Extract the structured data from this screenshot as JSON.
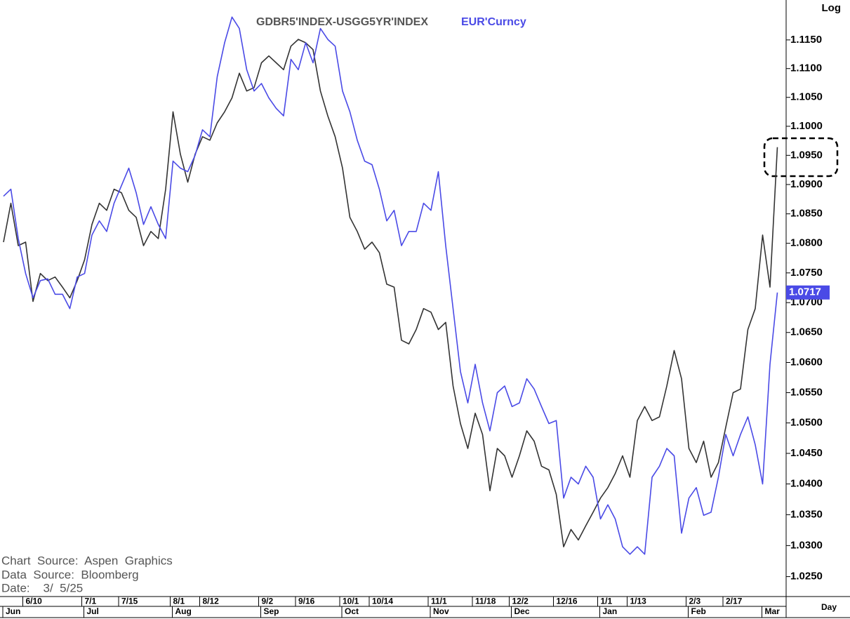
{
  "chart_data": {
    "type": "line",
    "legend": [
      "GDBR5'INDEX-USGG5YR'INDEX",
      "EUR'Curncy"
    ],
    "scale_label": "Log",
    "period_label": "Day",
    "source_lines": [
      "Chart  Source:  Aspen  Graphics",
      "Data  Source:  Bloomberg",
      "Date:    3/  5/25"
    ],
    "yscale": "log",
    "ylim": [
      1.0218,
      1.122
    ],
    "yticks": [
      {
        "value": 1.025,
        "label": "1.0250"
      },
      {
        "value": 1.03,
        "label": "1.0300"
      },
      {
        "value": 1.035,
        "label": "1.0350"
      },
      {
        "value": 1.04,
        "label": "1.0400"
      },
      {
        "value": 1.045,
        "label": "1.0450"
      },
      {
        "value": 1.05,
        "label": "1.0500"
      },
      {
        "value": 1.055,
        "label": "1.0550"
      },
      {
        "value": 1.06,
        "label": "1.0600"
      },
      {
        "value": 1.065,
        "label": "1.0650"
      },
      {
        "value": 1.07,
        "label": "1.0700"
      },
      {
        "value": 1.075,
        "label": "1.0750"
      },
      {
        "value": 1.08,
        "label": "1.0800"
      },
      {
        "value": 1.085,
        "label": "1.0850"
      },
      {
        "value": 1.09,
        "label": "1.0900"
      },
      {
        "value": 1.095,
        "label": "1.0950"
      },
      {
        "value": 1.1,
        "label": "1.1000"
      },
      {
        "value": 1.105,
        "label": "1.1050"
      },
      {
        "value": 1.11,
        "label": "1.1100"
      },
      {
        "value": 1.115,
        "label": "1.1150"
      }
    ],
    "categories": [
      null,
      null,
      null,
      "6/10",
      null,
      null,
      null,
      null,
      null,
      null,
      null,
      "7/1",
      null,
      null,
      null,
      null,
      "7/15",
      null,
      null,
      null,
      null,
      null,
      null,
      "8/1",
      null,
      null,
      null,
      "8/12",
      null,
      null,
      null,
      null,
      null,
      null,
      null,
      "9/2",
      null,
      null,
      null,
      null,
      "9/16",
      null,
      null,
      null,
      null,
      null,
      "10/1",
      null,
      null,
      null,
      "10/14",
      null,
      null,
      null,
      null,
      null,
      null,
      null,
      "11/1",
      null,
      null,
      null,
      null,
      null,
      "11/18",
      null,
      null,
      null,
      null,
      "12/2",
      null,
      null,
      null,
      null,
      null,
      "12/16",
      null,
      null,
      null,
      null,
      null,
      "1/1",
      null,
      null,
      null,
      "1/13",
      null,
      null,
      null,
      null,
      null,
      null,
      null,
      "2/3",
      null,
      null,
      null,
      null,
      "2/17",
      null,
      null,
      null,
      null,
      null,
      null,
      null
    ],
    "months": [
      "Jun",
      null,
      null,
      null,
      null,
      null,
      null,
      null,
      null,
      null,
      null,
      "Jul",
      null,
      null,
      null,
      null,
      null,
      null,
      null,
      null,
      null,
      null,
      null,
      "Aug",
      null,
      null,
      null,
      null,
      null,
      null,
      null,
      null,
      null,
      null,
      null,
      "Sep",
      null,
      null,
      null,
      null,
      null,
      null,
      null,
      null,
      null,
      null,
      "Oct",
      null,
      null,
      null,
      null,
      null,
      null,
      null,
      null,
      null,
      null,
      null,
      "Nov",
      null,
      null,
      null,
      null,
      null,
      null,
      null,
      null,
      null,
      null,
      "Dec",
      null,
      null,
      null,
      null,
      null,
      null,
      null,
      null,
      null,
      null,
      null,
      "Jan",
      null,
      null,
      null,
      null,
      null,
      null,
      null,
      null,
      null,
      null,
      null,
      "Feb",
      null,
      null,
      null,
      null,
      null,
      null,
      null,
      null,
      null,
      "Mar",
      null,
      null
    ],
    "series": [
      {
        "name": "GDBR5'INDEX-USGG5YR'INDEX",
        "color": "#333333",
        "values": [
          1.0802,
          1.0868,
          1.0796,
          1.0802,
          1.0702,
          1.0749,
          1.0737,
          1.0743,
          1.0726,
          1.0708,
          1.0737,
          1.0772,
          1.0832,
          1.0868,
          1.0856,
          1.0892,
          1.0886,
          1.0856,
          1.0844,
          1.0796,
          1.082,
          1.0808,
          1.0892,
          1.1025,
          1.0952,
          1.0904,
          1.0952,
          1.0982,
          1.0976,
          1.1006,
          1.1025,
          1.1049,
          1.1092,
          1.1061,
          1.1067,
          1.111,
          1.1122,
          1.111,
          1.1098,
          1.1139,
          1.1151,
          1.1145,
          1.1133,
          1.1061,
          1.1018,
          1.0982,
          1.0928,
          1.0844,
          1.082,
          1.079,
          1.0802,
          1.0784,
          1.0731,
          1.0726,
          1.0637,
          1.0631,
          1.0655,
          1.069,
          1.0684,
          1.0655,
          1.0667,
          1.0561,
          1.0499,
          1.0458,
          1.0516,
          1.0481,
          1.0389,
          1.0458,
          1.0446,
          1.0411,
          1.0446,
          1.0487,
          1.047,
          1.0429,
          1.0423,
          1.0383,
          1.0298,
          1.0326,
          1.0309,
          1.0332,
          1.0354,
          1.0377,
          1.0394,
          1.0417,
          1.0446,
          1.0411,
          1.0504,
          1.0527,
          1.0504,
          1.051,
          1.0561,
          1.062,
          1.0573,
          1.0458,
          1.0435,
          1.047,
          1.0411,
          1.0435,
          1.0493,
          1.055,
          1.0556,
          1.0655,
          1.069,
          1.0814,
          1.0726,
          1.0964
        ]
      },
      {
        "name": "EUR'Curncy",
        "color": "#4a4ae6",
        "last_value_label": "1.0717",
        "values": [
          1.088,
          1.0892,
          1.0808,
          1.0749,
          1.0708,
          1.0737,
          1.074,
          1.0714,
          1.0714,
          1.069,
          1.0743,
          1.0749,
          1.0814,
          1.0838,
          1.082,
          1.0868,
          1.0898,
          1.0928,
          1.0886,
          1.0832,
          1.0862,
          1.0832,
          1.0808,
          1.094,
          1.0928,
          1.0922,
          1.095,
          1.0994,
          1.0982,
          1.1086,
          1.1145,
          1.119,
          1.117,
          1.1098,
          1.1061,
          1.1074,
          1.1049,
          1.1031,
          1.1018,
          1.1116,
          1.1098,
          1.1145,
          1.111,
          1.117,
          1.1151,
          1.1139,
          1.1061,
          1.1025,
          1.0976,
          1.094,
          1.0934,
          1.0892,
          1.0838,
          1.0856,
          1.0796,
          1.082,
          1.082,
          1.0868,
          1.0856,
          1.0922,
          1.0796,
          1.069,
          1.0585,
          1.0533,
          1.0597,
          1.0533,
          1.0487,
          1.055,
          1.0561,
          1.0527,
          1.0533,
          1.0573,
          1.0556,
          1.0527,
          1.0499,
          1.0504,
          1.0377,
          1.0411,
          1.04,
          1.0429,
          1.0411,
          1.0343,
          1.0366,
          1.0343,
          1.0298,
          1.0286,
          1.0298,
          1.0286,
          1.0411,
          1.0429,
          1.0458,
          1.0446,
          1.032,
          1.0377,
          1.0394,
          1.0349,
          1.0354,
          1.0411,
          1.0481,
          1.0446,
          1.0481,
          1.051,
          1.0464,
          1.04,
          1.0597,
          1.0717
        ]
      }
    ]
  }
}
